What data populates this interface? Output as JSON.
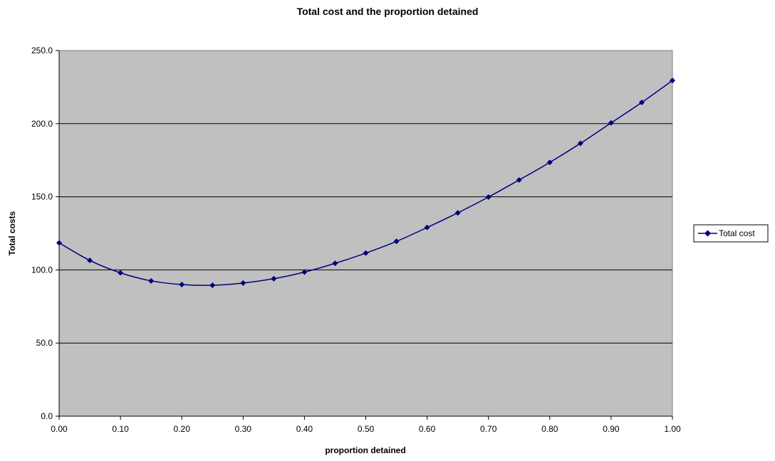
{
  "chart_data": {
    "type": "line",
    "title": "Total cost and the proportion detained",
    "xlabel": "proportion detained",
    "ylabel": "Total costs",
    "xlim": [
      0,
      1
    ],
    "ylim": [
      0,
      250
    ],
    "x_ticks": [
      "0.00",
      "0.10",
      "0.20",
      "0.30",
      "0.40",
      "0.50",
      "0.60",
      "0.70",
      "0.80",
      "0.90",
      "1.00"
    ],
    "y_ticks": [
      "0.0",
      "50.0",
      "100.0",
      "150.0",
      "200.0",
      "250.0"
    ],
    "grid": "horizontal",
    "plot_background": "#C0C0C0",
    "legend_position": "right",
    "series": [
      {
        "name": "Total cost",
        "color": "#000080",
        "marker": "diamond",
        "x": [
          0.0,
          0.05,
          0.1,
          0.15,
          0.2,
          0.25,
          0.3,
          0.35,
          0.4,
          0.45,
          0.5,
          0.55,
          0.6,
          0.65,
          0.7,
          0.75,
          0.8,
          0.85,
          0.9,
          0.95,
          1.0
        ],
        "values": [
          118.5,
          106.5,
          98.0,
          92.5,
          90.0,
          89.5,
          91.0,
          94.0,
          98.5,
          104.5,
          111.5,
          119.5,
          129.0,
          139.0,
          149.8,
          161.5,
          173.5,
          186.5,
          200.5,
          214.5,
          229.5
        ]
      }
    ]
  }
}
